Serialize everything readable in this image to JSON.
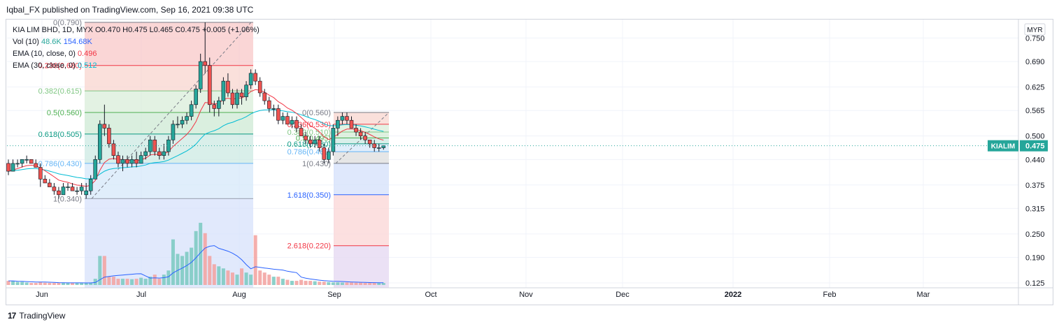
{
  "header": {
    "published": "Iqbal_FX published on TradingView.com, Sep 16, 2021 09:38 UTC"
  },
  "legend": {
    "symbol": "KIA LIM BHD, 1D, MYX",
    "ohlc": "O0.470  H0.475  L0.465  C0.475  +0.005 (+1.06%)",
    "vol_label": "Vol (10)",
    "vol_value1": "48.6K",
    "vol_value2": "154.68K",
    "ema1_label": "EMA (10, close, 0)",
    "ema1_value": "0.496",
    "ema2_label": "EMA (30, close, 0)",
    "ema2_value": "0.512"
  },
  "footer": {
    "brand": "TradingView",
    "logo_mark": "17"
  },
  "chart_data": {
    "type": "candlestick",
    "currency": "MYR",
    "symbol_tag": "KIALIM",
    "last_price": "0.475",
    "ylim": [
      0.125,
      0.79
    ],
    "y_ticks": [
      "0.750",
      "0.690",
      "0.625",
      "0.565",
      "0.500",
      "0.440",
      "0.375",
      "0.315",
      "0.250",
      "0.190",
      "0.125"
    ],
    "x_ticks": [
      "Jun",
      "Jul",
      "Aug",
      "Sep",
      "Oct",
      "Nov",
      "Dec",
      "2022",
      "Feb",
      "Mar"
    ],
    "candles": [
      [
        0.43,
        0.44,
        0.4,
        0.41
      ],
      [
        0.41,
        0.44,
        0.41,
        0.43
      ],
      [
        0.43,
        0.44,
        0.42,
        0.43
      ],
      [
        0.43,
        0.44,
        0.42,
        0.44
      ],
      [
        0.44,
        0.45,
        0.43,
        0.44
      ],
      [
        0.44,
        0.44,
        0.43,
        0.43
      ],
      [
        0.43,
        0.44,
        0.42,
        0.42
      ],
      [
        0.42,
        0.43,
        0.37,
        0.39
      ],
      [
        0.39,
        0.4,
        0.38,
        0.38
      ],
      [
        0.38,
        0.39,
        0.37,
        0.37
      ],
      [
        0.37,
        0.38,
        0.35,
        0.36
      ],
      [
        0.36,
        0.37,
        0.34,
        0.35
      ],
      [
        0.35,
        0.38,
        0.35,
        0.37
      ],
      [
        0.37,
        0.38,
        0.36,
        0.37
      ],
      [
        0.37,
        0.38,
        0.36,
        0.36
      ],
      [
        0.36,
        0.37,
        0.35,
        0.36
      ],
      [
        0.36,
        0.38,
        0.35,
        0.37
      ],
      [
        0.35,
        0.38,
        0.34,
        0.36
      ],
      [
        0.36,
        0.4,
        0.35,
        0.39
      ],
      [
        0.39,
        0.45,
        0.39,
        0.44
      ],
      [
        0.44,
        0.54,
        0.43,
        0.53
      ],
      [
        0.53,
        0.58,
        0.5,
        0.52
      ],
      [
        0.52,
        0.53,
        0.47,
        0.48
      ],
      [
        0.48,
        0.49,
        0.44,
        0.45
      ],
      [
        0.45,
        0.46,
        0.42,
        0.43
      ],
      [
        0.43,
        0.45,
        0.41,
        0.44
      ],
      [
        0.44,
        0.45,
        0.42,
        0.43
      ],
      [
        0.43,
        0.45,
        0.42,
        0.44
      ],
      [
        0.44,
        0.46,
        0.42,
        0.43
      ],
      [
        0.43,
        0.46,
        0.43,
        0.45
      ],
      [
        0.45,
        0.47,
        0.44,
        0.46
      ],
      [
        0.46,
        0.5,
        0.45,
        0.49
      ],
      [
        0.49,
        0.5,
        0.45,
        0.46
      ],
      [
        0.46,
        0.47,
        0.44,
        0.45
      ],
      [
        0.45,
        0.48,
        0.44,
        0.46
      ],
      [
        0.46,
        0.5,
        0.45,
        0.49
      ],
      [
        0.49,
        0.54,
        0.48,
        0.53
      ],
      [
        0.53,
        0.55,
        0.52,
        0.53
      ],
      [
        0.53,
        0.55,
        0.52,
        0.54
      ],
      [
        0.54,
        0.56,
        0.53,
        0.55
      ],
      [
        0.55,
        0.59,
        0.54,
        0.58
      ],
      [
        0.58,
        0.63,
        0.57,
        0.62
      ],
      [
        0.62,
        0.71,
        0.61,
        0.69
      ],
      [
        0.69,
        0.79,
        0.66,
        0.68
      ],
      [
        0.68,
        0.7,
        0.56,
        0.58
      ],
      [
        0.58,
        0.59,
        0.55,
        0.57
      ],
      [
        0.57,
        0.6,
        0.55,
        0.59
      ],
      [
        0.59,
        0.65,
        0.58,
        0.64
      ],
      [
        0.64,
        0.66,
        0.6,
        0.61
      ],
      [
        0.61,
        0.62,
        0.57,
        0.58
      ],
      [
        0.58,
        0.62,
        0.57,
        0.61
      ],
      [
        0.61,
        0.62,
        0.58,
        0.6
      ],
      [
        0.6,
        0.64,
        0.59,
        0.63
      ],
      [
        0.63,
        0.67,
        0.62,
        0.66
      ],
      [
        0.66,
        0.67,
        0.63,
        0.64
      ],
      [
        0.64,
        0.65,
        0.6,
        0.61
      ],
      [
        0.61,
        0.62,
        0.58,
        0.59
      ],
      [
        0.59,
        0.6,
        0.56,
        0.57
      ],
      [
        0.57,
        0.58,
        0.55,
        0.57
      ],
      [
        0.57,
        0.58,
        0.53,
        0.54
      ],
      [
        0.54,
        0.56,
        0.53,
        0.55
      ],
      [
        0.55,
        0.56,
        0.53,
        0.53
      ],
      [
        0.53,
        0.55,
        0.52,
        0.54
      ],
      [
        0.54,
        0.55,
        0.51,
        0.52
      ],
      [
        0.52,
        0.53,
        0.5,
        0.5
      ],
      [
        0.5,
        0.51,
        0.48,
        0.49
      ],
      [
        0.49,
        0.5,
        0.47,
        0.48
      ],
      [
        0.48,
        0.5,
        0.47,
        0.49
      ],
      [
        0.49,
        0.5,
        0.46,
        0.47
      ],
      [
        0.47,
        0.48,
        0.43,
        0.44
      ],
      [
        0.44,
        0.47,
        0.43,
        0.46
      ],
      [
        0.46,
        0.53,
        0.45,
        0.52
      ],
      [
        0.52,
        0.55,
        0.5,
        0.54
      ],
      [
        0.54,
        0.56,
        0.53,
        0.55
      ],
      [
        0.55,
        0.56,
        0.53,
        0.54
      ],
      [
        0.54,
        0.55,
        0.52,
        0.52
      ],
      [
        0.52,
        0.53,
        0.5,
        0.51
      ],
      [
        0.51,
        0.52,
        0.49,
        0.5
      ],
      [
        0.5,
        0.51,
        0.48,
        0.49
      ],
      [
        0.49,
        0.49,
        0.47,
        0.48
      ],
      [
        0.48,
        0.49,
        0.46,
        0.47
      ],
      [
        0.47,
        0.48,
        0.46,
        0.47
      ],
      [
        0.47,
        0.475,
        0.465,
        0.475
      ]
    ],
    "volumes": [
      2,
      2,
      1.5,
      1.5,
      1.2,
      1,
      1,
      1.3,
      1.1,
      1,
      1,
      1,
      1,
      1,
      1,
      1,
      1,
      1,
      1.2,
      3,
      14,
      14,
      4,
      4,
      3,
      3,
      3,
      2.8,
      3,
      3.5,
      3,
      4,
      5,
      3,
      5,
      7,
      22,
      15,
      14,
      16,
      18,
      26,
      30,
      25,
      14,
      10,
      9,
      8,
      7,
      6,
      5,
      8,
      6,
      5,
      24,
      7,
      6,
      5,
      4,
      4,
      3,
      2.5,
      2,
      2,
      2.5,
      2,
      2,
      1.8,
      1.6,
      1.6,
      1.4,
      1.3,
      1.3,
      1.2,
      1.2,
      1.2,
      1.1,
      1.1,
      1,
      1,
      1,
      1,
      1
    ],
    "fib_sets": [
      {
        "levels": [
          {
            "label": "0(0.790)",
            "value": 0.79
          },
          {
            "label": "0.236(0.680)",
            "value": 0.68
          },
          {
            "label": "0.382(0.615)",
            "value": 0.615
          },
          {
            "label": "0.5(0.560)",
            "value": 0.56
          },
          {
            "label": "0.618(0.505)",
            "value": 0.505
          },
          {
            "label": "0.786(0.430)",
            "value": 0.43
          },
          {
            "label": "1(0.340)",
            "value": 0.34
          }
        ]
      },
      {
        "levels": [
          {
            "label": "0(0.560)",
            "value": 0.56
          },
          {
            "label": "0.236(0.530)",
            "value": 0.53
          },
          {
            "label": "0.382(0.510)",
            "value": 0.51
          },
          {
            "label": "0.5(0.495)",
            "value": 0.495
          },
          {
            "label": "0.618(0.480)",
            "value": 0.48
          },
          {
            "label": "0.786(0.460)",
            "value": 0.46
          },
          {
            "label": "1(0.430)",
            "value": 0.43
          },
          {
            "label": "1.618(0.350)",
            "value": 0.35
          },
          {
            "label": "2.618(0.220)",
            "value": 0.22
          }
        ]
      }
    ],
    "colors": {
      "up": "#26a69a",
      "down": "#ef5350",
      "ema10": "#f23645",
      "ema30": "#00bcd4",
      "vol_ma": "#2962ff",
      "tag_bg": "#26a69a"
    }
  }
}
